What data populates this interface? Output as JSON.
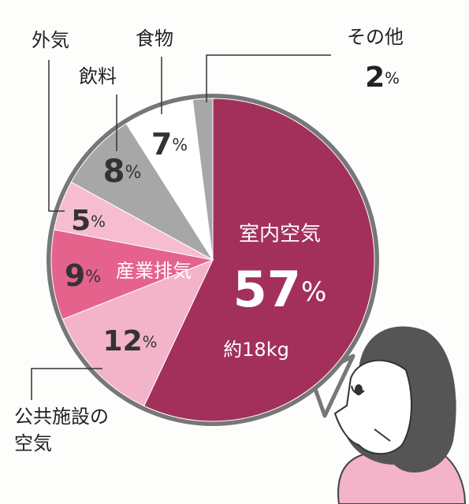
{
  "chart_data": {
    "type": "pie",
    "categories": [
      "室内空気",
      "公共施設の空気",
      "産業排気",
      "外気",
      "飲料",
      "食物",
      "その他"
    ],
    "values": [
      57,
      12,
      9,
      5,
      8,
      7,
      2
    ],
    "value_labels": [
      "57%",
      "12%",
      "9%",
      "5%",
      "8%",
      "7%",
      "2%"
    ],
    "colors": [
      "#a3305b",
      "#f3b3c9",
      "#e5628c",
      "#f6bdd0",
      "#a7a7a7",
      "#ffffff",
      "#a7a7a7"
    ],
    "annotation": "約18kg"
  }
}
